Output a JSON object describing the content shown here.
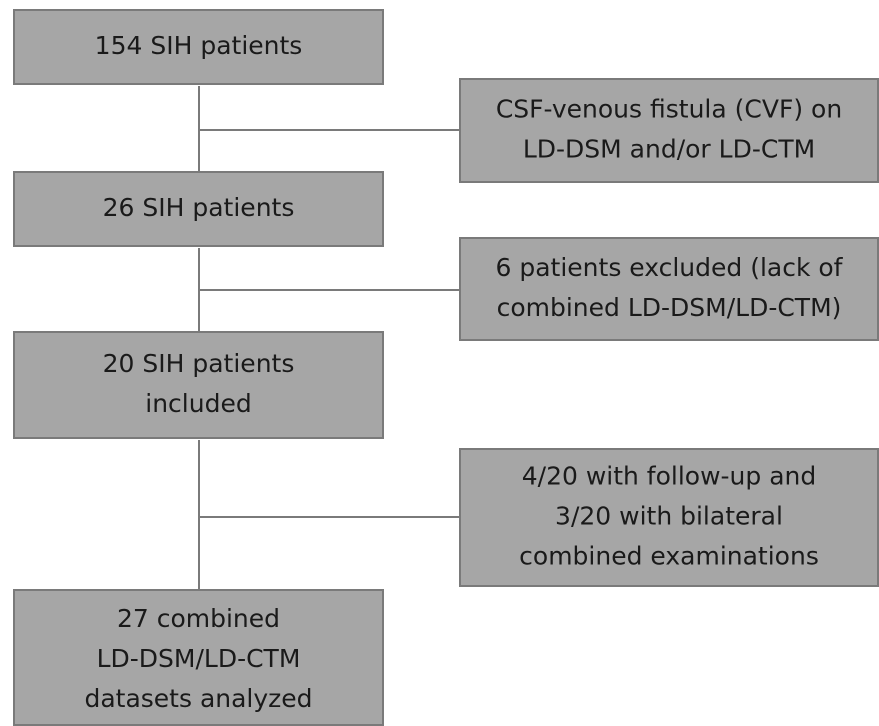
{
  "main": [
    {
      "lines": [
        "154 SIH patients"
      ]
    },
    {
      "lines": [
        "26 SIH patients"
      ]
    },
    {
      "lines": [
        "20 SIH patients",
        "included"
      ]
    },
    {
      "lines": [
        "27 combined",
        "LD-DSM/LD-CTM",
        "datasets analyzed"
      ]
    }
  ],
  "side": [
    {
      "lines": [
        "CSF-venous fistula (CVF) on",
        "LD-DSM and/or LD-CTM"
      ]
    },
    {
      "lines": [
        "6 patients excluded (lack of",
        "combined LD-DSM/LD-CTM)"
      ]
    },
    {
      "lines": [
        "4/20 with follow-up and",
        "3/20 with bilateral",
        "combined examinations"
      ]
    }
  ]
}
